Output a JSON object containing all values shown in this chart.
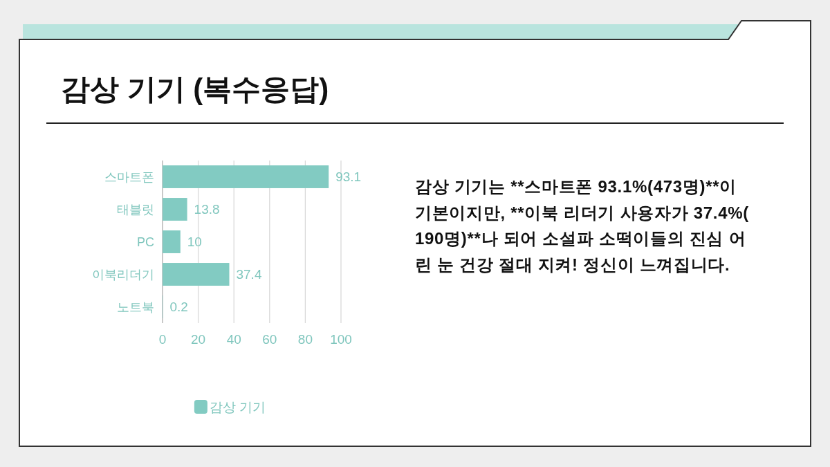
{
  "chart_data": {
    "type": "bar",
    "orientation": "horizontal",
    "title": "감상 기기 (복수응답)",
    "categories": [
      "스마트폰",
      "태블릿",
      "PC",
      "이북리더기",
      "노트북"
    ],
    "series": [
      {
        "name": "감상 기기",
        "color": "#82cbc2",
        "values": [
          93.1,
          13.8,
          10,
          37.4,
          0.2
        ]
      }
    ],
    "xlim": [
      0,
      100
    ],
    "xticks": [
      0,
      20,
      40,
      60,
      80,
      100
    ],
    "grid": "x",
    "legend": "bottom",
    "data_labels": true,
    "annotations": [
      "감상 기기는 **스마트폰 93.1%(473명)**이 기본이지만, **이북 리더기 사용자가 37.4%(190명)**나 되어 소설파 소떡이들의 진심 어린 눈 건강 절대 지켜! 정신이 느껴집니다."
    ]
  }
}
